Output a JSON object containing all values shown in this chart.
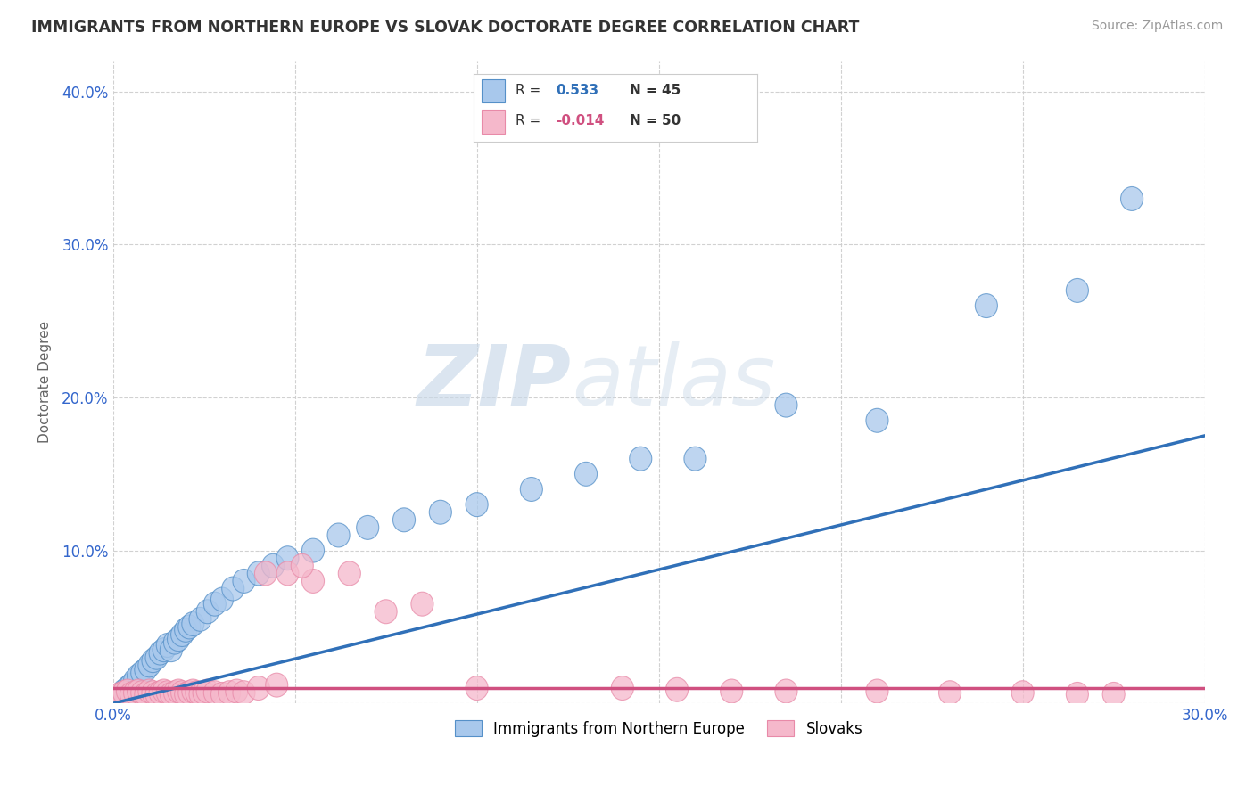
{
  "title": "IMMIGRANTS FROM NORTHERN EUROPE VS SLOVAK DOCTORATE DEGREE CORRELATION CHART",
  "source": "Source: ZipAtlas.com",
  "ylabel_label": "Doctorate Degree",
  "xlim": [
    0.0,
    0.3
  ],
  "ylim": [
    0.0,
    0.42
  ],
  "xtick_pos": [
    0.0,
    0.05,
    0.1,
    0.15,
    0.2,
    0.25,
    0.3
  ],
  "xticklabels": [
    "0.0%",
    "",
    "",
    "",
    "",
    "",
    "30.0%"
  ],
  "ytick_pos": [
    0.0,
    0.1,
    0.2,
    0.3,
    0.4
  ],
  "yticklabels": [
    "",
    "10.0%",
    "20.0%",
    "30.0%",
    "40.0%"
  ],
  "blue_R": "0.533",
  "blue_N": "45",
  "pink_R": "-0.014",
  "pink_N": "50",
  "blue_color": "#A8C8EC",
  "pink_color": "#F5B8CB",
  "blue_edge_color": "#5590C8",
  "pink_edge_color": "#E88AA8",
  "blue_line_color": "#3070B8",
  "pink_line_color": "#D05080",
  "watermark_zip": "ZIP",
  "watermark_atlas": "atlas",
  "legend_label_blue": "Immigrants from Northern Europe",
  "legend_label_pink": "Slovaks",
  "blue_line_x": [
    0.0,
    0.3
  ],
  "blue_line_y": [
    0.0,
    0.175
  ],
  "pink_line_x": [
    0.0,
    0.3
  ],
  "pink_line_y": [
    0.01,
    0.01
  ],
  "blue_points_x": [
    0.002,
    0.003,
    0.004,
    0.005,
    0.006,
    0.007,
    0.008,
    0.009,
    0.01,
    0.011,
    0.012,
    0.013,
    0.014,
    0.015,
    0.016,
    0.017,
    0.018,
    0.019,
    0.02,
    0.021,
    0.022,
    0.024,
    0.026,
    0.028,
    0.03,
    0.033,
    0.036,
    0.04,
    0.044,
    0.048,
    0.055,
    0.062,
    0.07,
    0.08,
    0.09,
    0.1,
    0.115,
    0.13,
    0.145,
    0.16,
    0.185,
    0.21,
    0.24,
    0.265,
    0.28
  ],
  "blue_points_y": [
    0.005,
    0.008,
    0.01,
    0.012,
    0.015,
    0.018,
    0.02,
    0.022,
    0.025,
    0.028,
    0.03,
    0.033,
    0.035,
    0.038,
    0.035,
    0.04,
    0.042,
    0.045,
    0.048,
    0.05,
    0.052,
    0.055,
    0.06,
    0.065,
    0.068,
    0.075,
    0.08,
    0.085,
    0.09,
    0.095,
    0.1,
    0.11,
    0.115,
    0.12,
    0.125,
    0.13,
    0.14,
    0.15,
    0.16,
    0.16,
    0.195,
    0.185,
    0.26,
    0.27,
    0.33
  ],
  "pink_points_x": [
    0.001,
    0.002,
    0.003,
    0.004,
    0.005,
    0.006,
    0.007,
    0.008,
    0.009,
    0.01,
    0.011,
    0.012,
    0.013,
    0.014,
    0.015,
    0.016,
    0.017,
    0.018,
    0.019,
    0.02,
    0.021,
    0.022,
    0.023,
    0.024,
    0.025,
    0.026,
    0.028,
    0.03,
    0.032,
    0.034,
    0.036,
    0.04,
    0.045,
    0.055,
    0.065,
    0.1,
    0.14,
    0.155,
    0.17,
    0.185,
    0.21,
    0.23,
    0.25,
    0.265,
    0.275,
    0.042,
    0.048,
    0.052,
    0.075,
    0.085
  ],
  "pink_points_y": [
    0.005,
    0.006,
    0.007,
    0.008,
    0.006,
    0.007,
    0.008,
    0.007,
    0.006,
    0.008,
    0.007,
    0.006,
    0.007,
    0.008,
    0.007,
    0.006,
    0.007,
    0.008,
    0.007,
    0.006,
    0.007,
    0.008,
    0.007,
    0.006,
    0.007,
    0.008,
    0.007,
    0.006,
    0.007,
    0.008,
    0.007,
    0.01,
    0.012,
    0.08,
    0.085,
    0.01,
    0.01,
    0.009,
    0.008,
    0.008,
    0.008,
    0.007,
    0.007,
    0.006,
    0.006,
    0.085,
    0.085,
    0.09,
    0.06,
    0.065
  ]
}
